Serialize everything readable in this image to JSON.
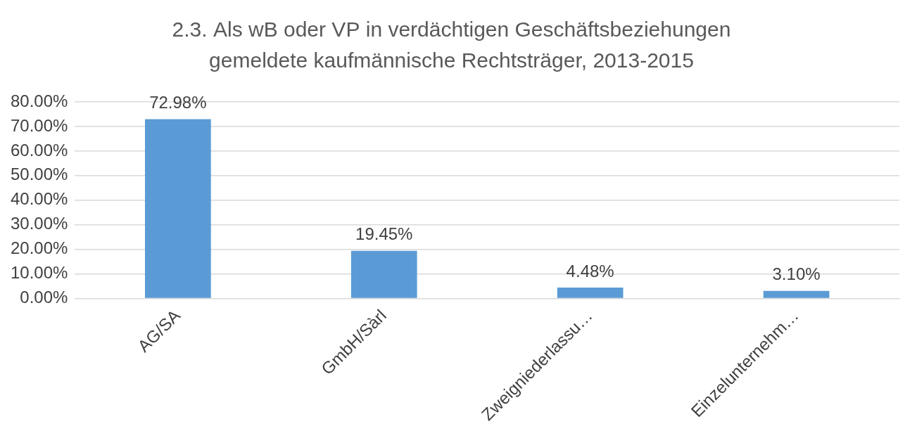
{
  "chart_data": {
    "type": "bar",
    "title": [
      "2.3. Als wB oder VP in verdächtigen Geschäftsbeziehungen",
      "gemeldete kaufmännische Rechtsträger, 2013-2015"
    ],
    "categories": [
      "AG/SA",
      "GmbH/Sàrl",
      "Zweigniederlassu…",
      "Einzelunternehm…"
    ],
    "values": [
      72.98,
      19.45,
      4.48,
      3.1
    ],
    "value_labels": [
      "72.98%",
      "19.45%",
      "4.48%",
      "3.10%"
    ],
    "data_labels": true,
    "color": "#5b9bd5",
    "ylim": [
      0,
      80
    ],
    "yticks": [
      {
        "value": 0,
        "label": "0.00%"
      },
      {
        "value": 10,
        "label": "10.00%"
      },
      {
        "value": 20,
        "label": "20.00%"
      },
      {
        "value": 30,
        "label": "30.00%"
      },
      {
        "value": 40,
        "label": "40.00%"
      },
      {
        "value": 50,
        "label": "50.00%"
      },
      {
        "value": 60,
        "label": "60.00%"
      },
      {
        "value": 70,
        "label": "70.00%"
      },
      {
        "value": 80,
        "label": "80.00%"
      }
    ],
    "grid": true
  }
}
